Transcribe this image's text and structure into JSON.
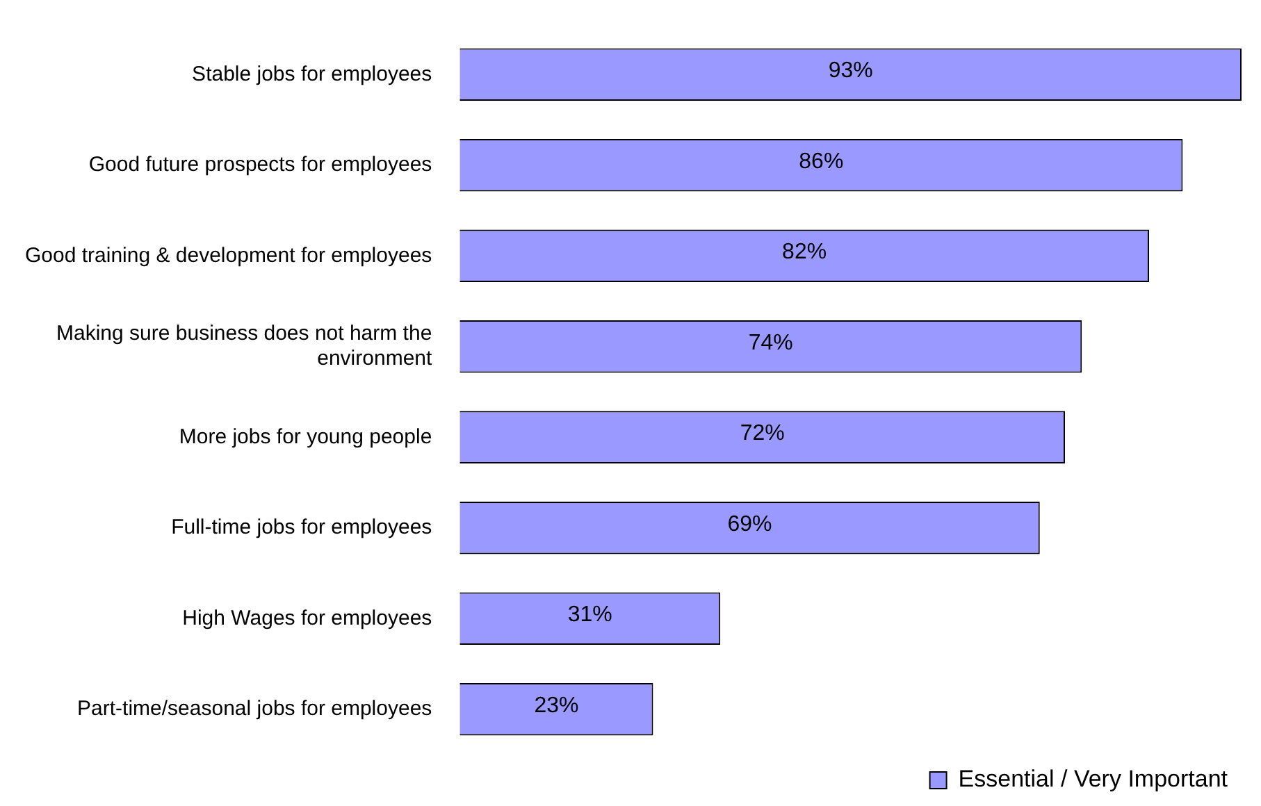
{
  "chart_data": {
    "type": "bar",
    "orientation": "horizontal",
    "categories": [
      "Stable jobs for employees",
      "Good future prospects for employees",
      "Good training & development for employees",
      "Making sure business does not harm the environment",
      "More jobs for young people",
      "Full-time jobs for employees",
      "High Wages for employees",
      "Part-time/seasonal jobs for employees"
    ],
    "series": [
      {
        "name": "Essential / Very Important",
        "color": "#9999ff",
        "values": [
          93,
          86,
          82,
          74,
          72,
          69,
          31,
          23
        ],
        "value_labels": [
          "93%",
          "86%",
          "82%",
          "74%",
          "72%",
          "69%",
          "31%",
          "23%"
        ]
      }
    ],
    "tick_labels": "y",
    "legend": "bottom right"
  }
}
